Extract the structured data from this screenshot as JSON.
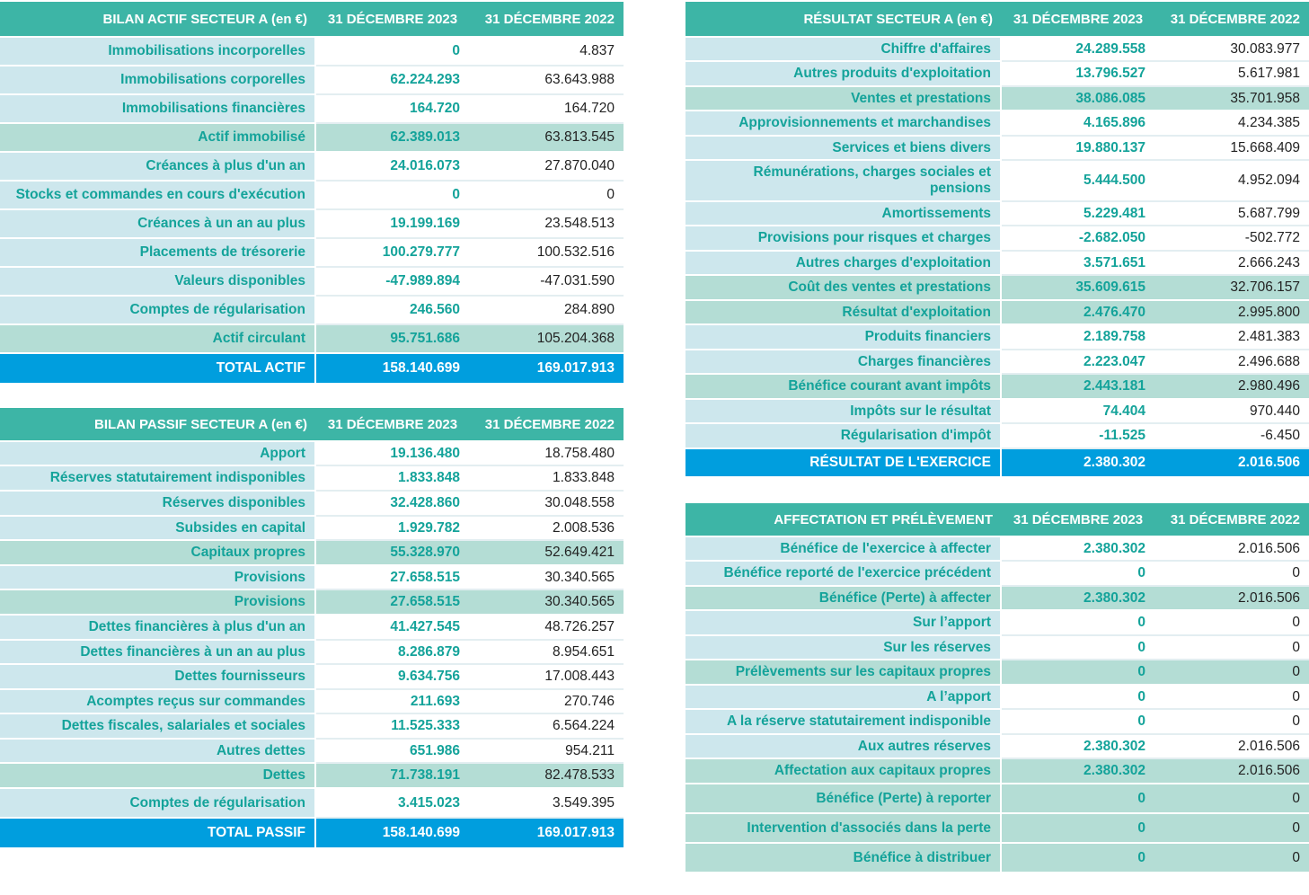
{
  "colors": {
    "header": "#3db5a6",
    "label_bg": "#cde7ed",
    "subtotal_bg": "#b4ddd5",
    "total_bg": "#009ede",
    "accent_text": "#14a39a"
  },
  "bilan_actif": {
    "title": "BILAN ACTIF SECTEUR A (en €)",
    "col1": "31 DÉCEMBRE 2023",
    "col2": "31 DÉCEMBRE 2022",
    "rows": [
      {
        "label": "Immobilisations incorporelles",
        "v2023": "0",
        "v2022": "4.837"
      },
      {
        "label": "Immobilisations corporelles",
        "v2023": "62.224.293",
        "v2022": "63.643.988"
      },
      {
        "label": "Immobilisations financières",
        "v2023": "164.720",
        "v2022": "164.720"
      },
      {
        "label": "Actif immobilisé",
        "v2023": "62.389.013",
        "v2022": "63.813.545"
      },
      {
        "label": "Créances à plus d'un an",
        "v2023": "24.016.073",
        "v2022": "27.870.040"
      },
      {
        "label": "Stocks et commandes en cours d'exécution",
        "v2023": "0",
        "v2022": "0"
      },
      {
        "label": "Créances à un an au plus",
        "v2023": "19.199.169",
        "v2022": "23.548.513"
      },
      {
        "label": "Placements de trésorerie",
        "v2023": "100.279.777",
        "v2022": "100.532.516"
      },
      {
        "label": "Valeurs disponibles",
        "v2023": "-47.989.894",
        "v2022": "-47.031.590"
      },
      {
        "label": "Comptes de régularisation",
        "v2023": "246.560",
        "v2022": "284.890"
      },
      {
        "label": "Actif circulant",
        "v2023": "95.751.686",
        "v2022": "105.204.368"
      },
      {
        "label": "TOTAL ACTIF",
        "v2023": "158.140.699",
        "v2022": "169.017.913"
      }
    ]
  },
  "bilan_passif": {
    "title": "BILAN PASSIF  SECTEUR A (en €)",
    "col1": "31 DÉCEMBRE 2023",
    "col2": "31 DÉCEMBRE 2022",
    "rows": [
      {
        "label": "Apport",
        "v2023": "19.136.480",
        "v2022": "18.758.480"
      },
      {
        "label": "Réserves statutairement indisponibles",
        "v2023": "1.833.848",
        "v2022": "1.833.848"
      },
      {
        "label": "Réserves disponibles",
        "v2023": "32.428.860",
        "v2022": "30.048.558"
      },
      {
        "label": "Subsides en capital",
        "v2023": "1.929.782",
        "v2022": "2.008.536"
      },
      {
        "label": "Capitaux propres",
        "v2023": "55.328.970",
        "v2022": "52.649.421"
      },
      {
        "label": "Provisions",
        "v2023": "27.658.515",
        "v2022": "30.340.565"
      },
      {
        "label": "Provisions",
        "v2023": "27.658.515",
        "v2022": "30.340.565"
      },
      {
        "label": "Dettes financières à plus d'un an",
        "v2023": "41.427.545",
        "v2022": "48.726.257"
      },
      {
        "label": "Dettes financières à un an au plus",
        "v2023": "8.286.879",
        "v2022": "8.954.651"
      },
      {
        "label": "Dettes fournisseurs",
        "v2023": "9.634.756",
        "v2022": "17.008.443"
      },
      {
        "label": "Acomptes reçus sur commandes",
        "v2023": "211.693",
        "v2022": "270.746"
      },
      {
        "label": "Dettes fiscales, salariales et sociales",
        "v2023": "11.525.333",
        "v2022": "6.564.224"
      },
      {
        "label": "Autres dettes",
        "v2023": "651.986",
        "v2022": "954.211"
      },
      {
        "label": "Dettes",
        "v2023": "71.738.191",
        "v2022": "82.478.533"
      },
      {
        "label": "Comptes de régularisation",
        "v2023": "3.415.023",
        "v2022": "3.549.395"
      },
      {
        "label": "TOTAL PASSIF",
        "v2023": "158.140.699",
        "v2022": "169.017.913"
      }
    ]
  },
  "resultat": {
    "title": "RÉSULTAT SECTEUR A (en €)",
    "col1": "31 DÉCEMBRE 2023",
    "col2": "31 DÉCEMBRE 2022",
    "rows": [
      {
        "label": "Chiffre d'affaires",
        "v2023": "24.289.558",
        "v2022": "30.083.977"
      },
      {
        "label": "Autres produits d'exploitation",
        "v2023": "13.796.527",
        "v2022": "5.617.981"
      },
      {
        "label": "Ventes et prestations",
        "v2023": "38.086.085",
        "v2022": "35.701.958"
      },
      {
        "label": "Approvisionnements et marchandises",
        "v2023": "4.165.896",
        "v2022": "4.234.385"
      },
      {
        "label": "Services et biens divers",
        "v2023": "19.880.137",
        "v2022": "15.668.409"
      },
      {
        "label": "Rémunérations, charges sociales et pensions",
        "v2023": "5.444.500",
        "v2022": "4.952.094"
      },
      {
        "label": "Amortissements",
        "v2023": "5.229.481",
        "v2022": "5.687.799"
      },
      {
        "label": "Provisions pour risques et charges",
        "v2023": "-2.682.050",
        "v2022": "-502.772"
      },
      {
        "label": "Autres charges d'exploitation",
        "v2023": "3.571.651",
        "v2022": "2.666.243"
      },
      {
        "label": "Coût des ventes et prestations",
        "v2023": "35.609.615",
        "v2022": "32.706.157"
      },
      {
        "label": "Résultat d'exploitation",
        "v2023": "2.476.470",
        "v2022": "2.995.800"
      },
      {
        "label": "Produits financiers",
        "v2023": "2.189.758",
        "v2022": "2.481.383"
      },
      {
        "label": "Charges financières",
        "v2023": "2.223.047",
        "v2022": "2.496.688"
      },
      {
        "label": "Bénéfice courant avant impôts",
        "v2023": "2.443.181",
        "v2022": "2.980.496"
      },
      {
        "label": "Impôts sur le résultat",
        "v2023": "74.404",
        "v2022": "970.440"
      },
      {
        "label": "Régularisation d'impôt",
        "v2023": "-11.525",
        "v2022": "-6.450"
      },
      {
        "label": "RÉSULTAT DE L'EXERCICE",
        "v2023": "2.380.302",
        "v2022": "2.016.506"
      }
    ]
  },
  "affectation": {
    "title": "AFFECTATION ET PRÉLÈVEMENT",
    "col1": "31 DÉCEMBRE 2023",
    "col2": "31 DÉCEMBRE 2022",
    "rows": [
      {
        "label": "Bénéfice de l'exercice à affecter",
        "v2023": "2.380.302",
        "v2022": "2.016.506"
      },
      {
        "label": "Bénéfice reporté de l'exercice précédent",
        "v2023": "0",
        "v2022": "0"
      },
      {
        "label": "Bénéfice (Perte) à affecter",
        "v2023": "2.380.302",
        "v2022": "2.016.506"
      },
      {
        "label": "Sur l’apport",
        "v2023": "0",
        "v2022": "0"
      },
      {
        "label": "Sur les réserves",
        "v2023": "0",
        "v2022": "0"
      },
      {
        "label": "Prélèvements sur les capitaux propres",
        "v2023": "0",
        "v2022": "0"
      },
      {
        "label": "A l’apport",
        "v2023": "0",
        "v2022": "0"
      },
      {
        "label": "A la réserve statutairement indisponible",
        "v2023": "0",
        "v2022": "0"
      },
      {
        "label": "Aux autres réserves",
        "v2023": "2.380.302",
        "v2022": "2.016.506"
      },
      {
        "label": "Affectation aux capitaux propres",
        "v2023": "2.380.302",
        "v2022": "2.016.506"
      },
      {
        "label": "Bénéfice (Perte) à reporter",
        "v2023": "0",
        "v2022": "0"
      },
      {
        "label": "Intervention d'associés dans la perte",
        "v2023": "0",
        "v2022": "0"
      },
      {
        "label": "Bénéfice à distribuer",
        "v2023": "0",
        "v2022": "0"
      }
    ]
  }
}
